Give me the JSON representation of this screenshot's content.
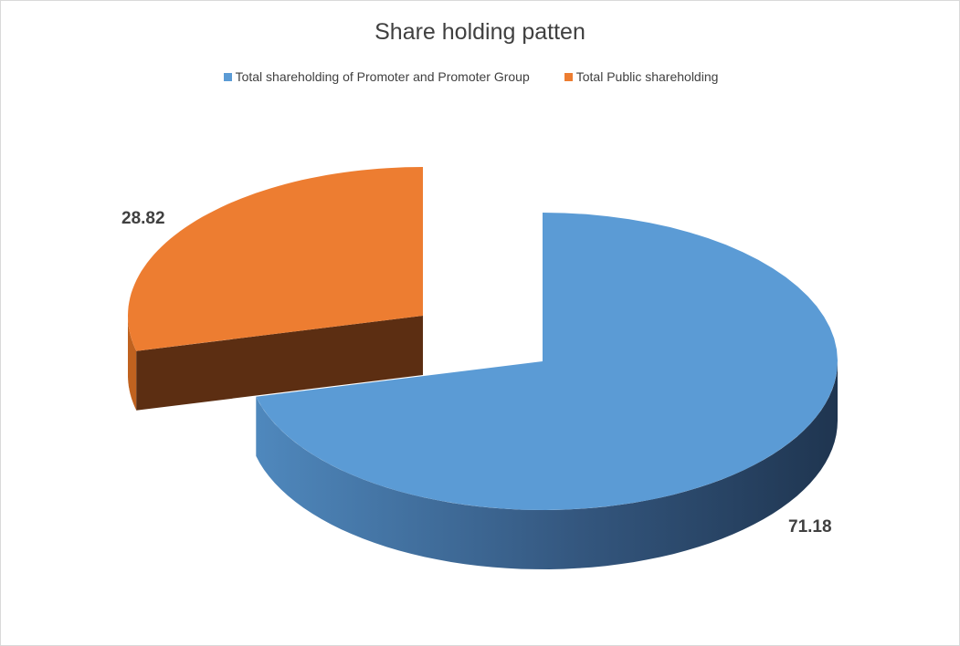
{
  "chart_data": {
    "type": "pie",
    "style": "3d-exploded",
    "title": "Share holding patten",
    "categories": [
      "Total shareholding of Promoter and Promoter Group",
      "Total Public shareholding"
    ],
    "values": [
      71.18,
      28.82
    ],
    "data_labels": [
      "71.18",
      "28.82"
    ],
    "colors": [
      "#5b9bd5",
      "#ed7d31"
    ],
    "legend_position": "top"
  }
}
